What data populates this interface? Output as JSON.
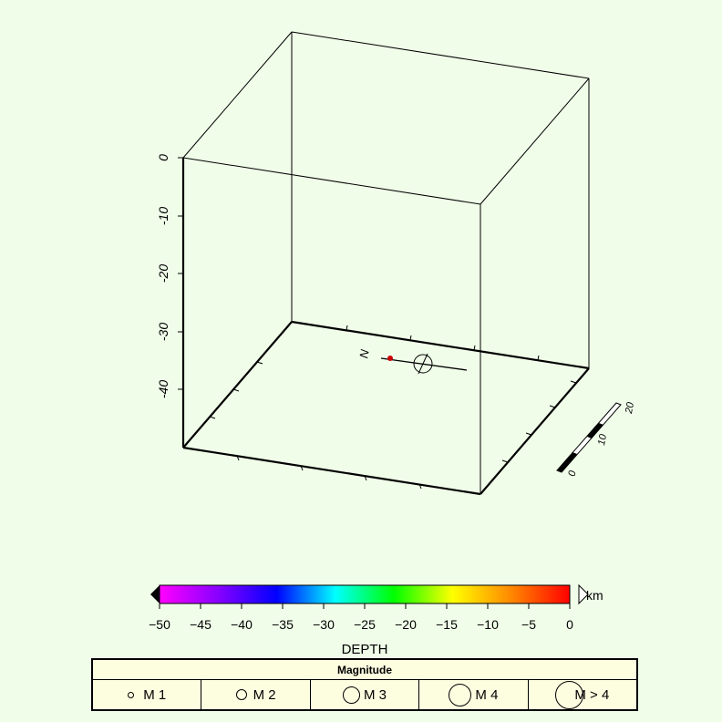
{
  "plot": {
    "depth_axis_ticks": [
      "0",
      "-10",
      "-20",
      "-30",
      "-40"
    ],
    "north_label": "N",
    "scale_bar_labels": [
      "0",
      "10",
      "20"
    ]
  },
  "colorbar": {
    "unit": "km",
    "title": "DEPTH",
    "ticks": [
      "−50",
      "−45",
      "−40",
      "−35",
      "−30",
      "−25",
      "−20",
      "−15",
      "−10",
      "−5",
      "0"
    ],
    "colors": [
      "#ff00ff",
      "#8800ff",
      "#0000ff",
      "#00ffff",
      "#00ff00",
      "#ffff00",
      "#ff8800",
      "#ff0000"
    ]
  },
  "legend": {
    "title": "Magnitude",
    "items": [
      {
        "label": "M 1"
      },
      {
        "label": "M 2"
      },
      {
        "label": "M 3"
      },
      {
        "label": "M 4"
      },
      {
        "label": "M > 4"
      }
    ]
  },
  "chart_data": {
    "type": "scatter",
    "title": "",
    "zlabel": "",
    "zlim": [
      -50,
      0
    ],
    "points": [
      {
        "depth": -50,
        "magnitude": 1,
        "color": "#cc0000"
      }
    ]
  }
}
